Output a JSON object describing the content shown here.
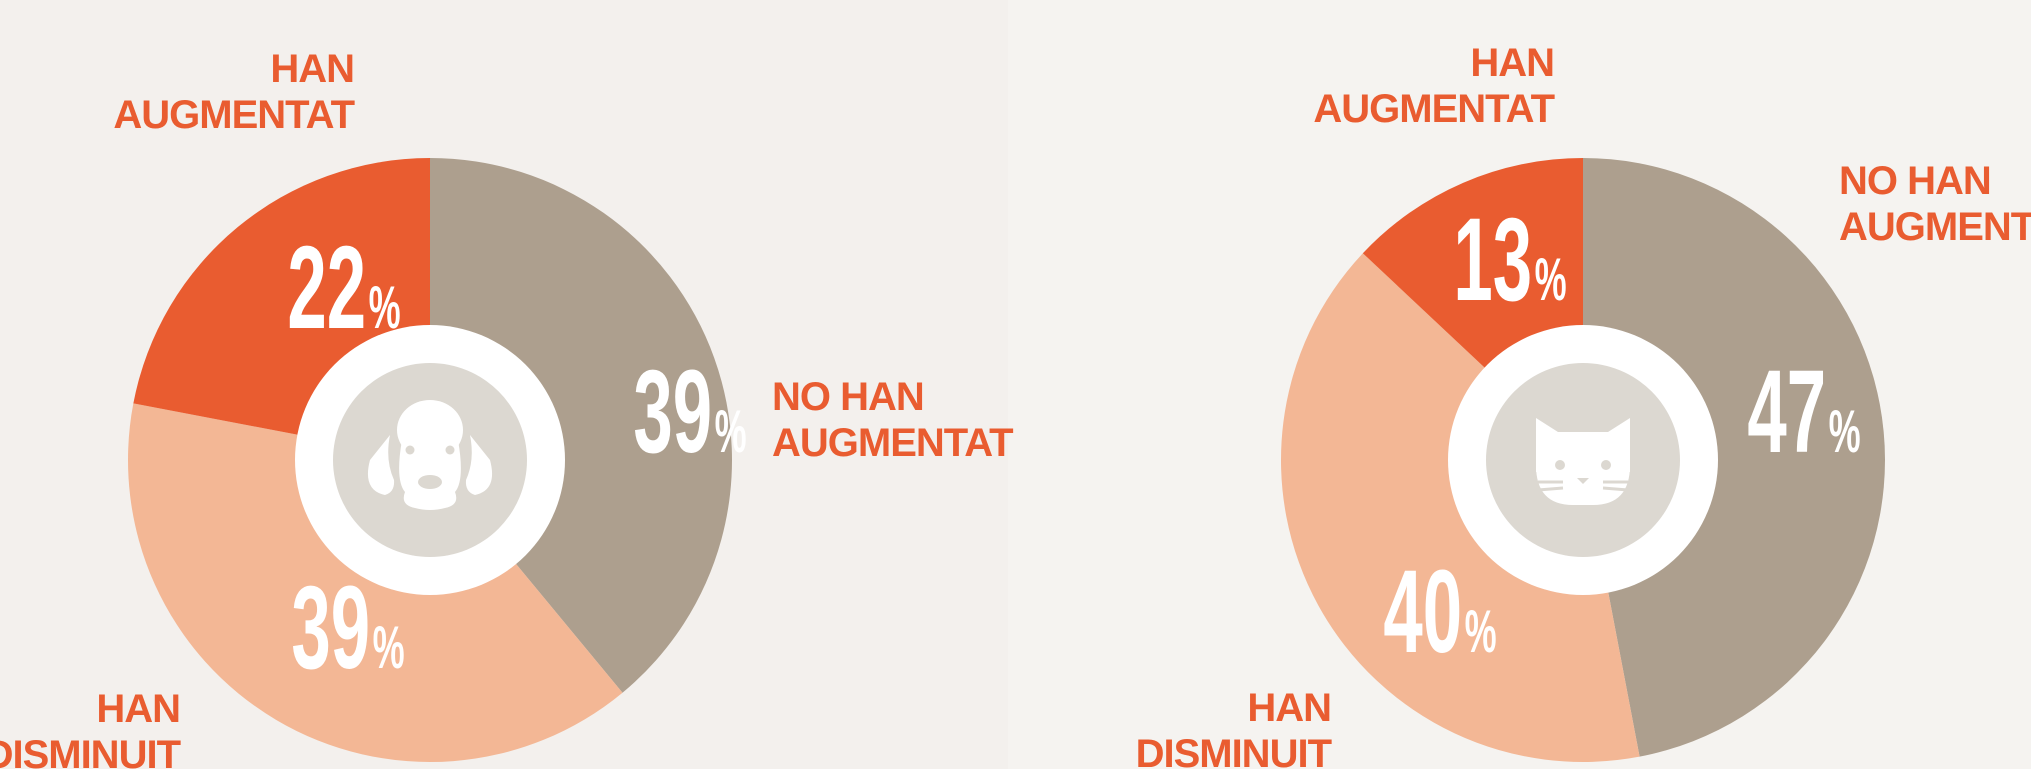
{
  "chart_data": [
    {
      "type": "pie",
      "categories": [
        [
          "NO HAN",
          "AUGMENTAT"
        ],
        [
          "HAN",
          "DISMINUIT"
        ],
        [
          "HAN",
          "AUGMENTAT"
        ]
      ],
      "values": [
        39,
        39,
        22
      ],
      "unit": "%",
      "colors": [
        "#ad9f8e",
        "#f3b795",
        "#e95c30"
      ]
    },
    {
      "type": "pie",
      "categories": [
        [
          "NO HAN",
          "AUGMENTAT"
        ],
        [
          "HAN",
          "DISMINUIT"
        ],
        [
          "HAN",
          "AUGMENTAT"
        ]
      ],
      "values": [
        47,
        40,
        13
      ],
      "unit": "%",
      "colors": [
        "#ad9f8e",
        "#f3b795",
        "#e95c30"
      ]
    }
  ]
}
